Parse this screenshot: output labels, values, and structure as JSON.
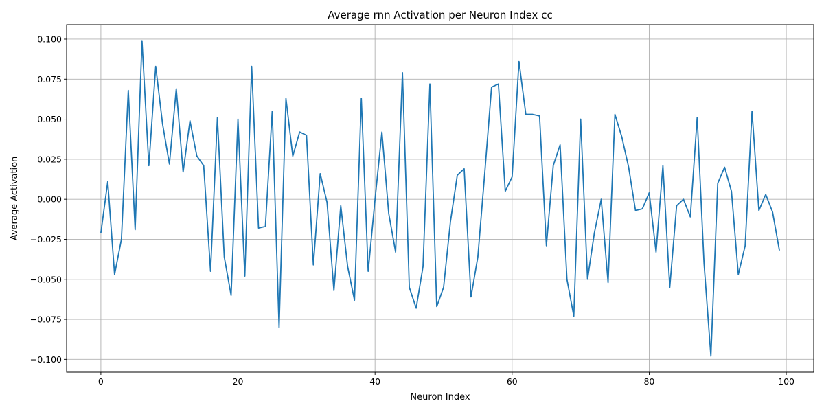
{
  "chart_data": {
    "type": "line",
    "title": "Average rnn Activation per Neuron Index cc",
    "xlabel": "Neuron Index",
    "ylabel": "Average Activation",
    "xlim": [
      -5,
      104
    ],
    "ylim": [
      -0.108,
      0.109
    ],
    "grid": true,
    "x_ticks": [
      0,
      20,
      40,
      60,
      80,
      100
    ],
    "x_tick_labels": [
      "0",
      "20",
      "40",
      "60",
      "80",
      "100"
    ],
    "y_ticks": [
      -0.1,
      -0.075,
      -0.05,
      -0.025,
      0,
      0.025,
      0.05,
      0.075,
      0.1
    ],
    "y_tick_labels": [
      "−0.100",
      "−0.075",
      "−0.050",
      "−0.025",
      "0.000",
      "0.025",
      "0.050",
      "0.075",
      "0.100"
    ],
    "series": [
      {
        "color": "#1f77b4",
        "x": [
          0,
          1,
          2,
          3,
          4,
          5,
          6,
          7,
          8,
          9,
          10,
          11,
          12,
          13,
          14,
          15,
          16,
          17,
          18,
          19,
          20,
          21,
          22,
          23,
          24,
          25,
          26,
          27,
          28,
          29,
          30,
          31,
          32,
          33,
          34,
          35,
          36,
          37,
          38,
          39,
          40,
          41,
          42,
          43,
          44,
          45,
          46,
          47,
          48,
          49,
          50,
          51,
          52,
          53,
          54,
          55,
          56,
          57,
          58,
          59,
          60,
          61,
          62,
          63,
          64,
          65,
          66,
          67,
          68,
          69,
          70,
          71,
          72,
          73,
          74,
          75,
          76,
          77,
          78,
          79,
          80,
          81,
          82,
          83,
          84,
          85,
          86,
          87,
          88,
          89,
          90,
          91,
          92,
          93,
          94,
          95,
          96,
          97,
          98,
          99
        ],
        "values": [
          -0.021,
          0.011,
          -0.047,
          -0.025,
          0.068,
          -0.019,
          0.099,
          0.021,
          0.083,
          0.047,
          0.022,
          0.069,
          0.017,
          0.049,
          0.027,
          0.021,
          -0.045,
          0.051,
          -0.036,
          -0.06,
          0.05,
          -0.048,
          0.083,
          -0.018,
          -0.017,
          0.055,
          -0.08,
          0.063,
          0.027,
          0.042,
          0.04,
          -0.041,
          0.016,
          -0.002,
          -0.057,
          -0.004,
          -0.042,
          -0.063,
          0.063,
          -0.045,
          0.0,
          0.042,
          -0.009,
          -0.033,
          0.079,
          -0.055,
          -0.068,
          -0.042,
          0.072,
          -0.067,
          -0.055,
          -0.014,
          0.015,
          0.019,
          -0.061,
          -0.036,
          0.016,
          0.07,
          0.072,
          0.005,
          0.014,
          0.086,
          0.053,
          0.053,
          0.052,
          -0.029,
          0.021,
          0.034,
          -0.05,
          -0.073,
          0.05,
          -0.05,
          -0.021,
          0.0,
          -0.052,
          0.053,
          0.039,
          0.02,
          -0.007,
          -0.006,
          0.004,
          -0.033,
          0.021,
          -0.055,
          -0.004,
          0.0,
          -0.011,
          0.051,
          -0.04,
          -0.098,
          0.01,
          0.02,
          0.005,
          -0.047,
          -0.029,
          0.055,
          -0.007,
          0.003,
          -0.008,
          -0.032
        ]
      }
    ]
  }
}
